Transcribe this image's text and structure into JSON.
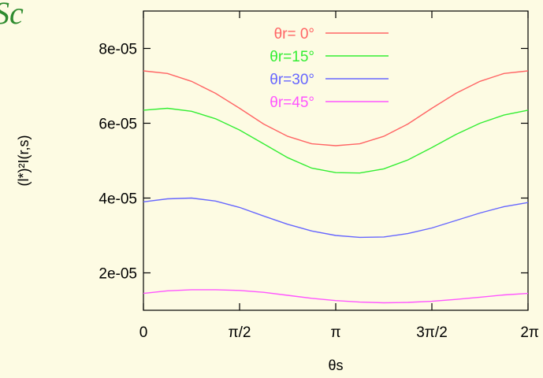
{
  "corner_text": "Sc",
  "chart_data": {
    "type": "line",
    "xlabel": "θs",
    "ylabel": "(l*)²I(r,s)",
    "xlim": [
      0,
      6.283185
    ],
    "ylim": [
      1e-05,
      9e-05
    ],
    "x_ticks": [
      {
        "value": 0,
        "label": "0"
      },
      {
        "value": 1.570796,
        "label": "π/2"
      },
      {
        "value": 3.141593,
        "label": "π"
      },
      {
        "value": 4.712389,
        "label": "3π/2"
      },
      {
        "value": 6.283185,
        "label": "2π"
      }
    ],
    "y_ticks": [
      {
        "value": 2e-05,
        "label": "2e-05"
      },
      {
        "value": 4e-05,
        "label": "4e-05"
      },
      {
        "value": 6e-05,
        "label": "6e-05"
      },
      {
        "value": 8e-05,
        "label": "8e-05"
      }
    ],
    "grid": false,
    "legend_position": "top-right",
    "x": [
      0,
      0.3927,
      0.7854,
      1.1781,
      1.5708,
      1.9635,
      2.3562,
      2.7489,
      3.1416,
      3.5343,
      3.927,
      4.3197,
      4.7124,
      5.1051,
      5.4978,
      5.8905,
      6.2832
    ],
    "series": [
      {
        "name": "θr= 0°",
        "color": "#ff6464",
        "values": [
          7.4e-05,
          7.33e-05,
          7.12e-05,
          6.8e-05,
          6.4e-05,
          5.98e-05,
          5.65e-05,
          5.45e-05,
          5.4e-05,
          5.45e-05,
          5.65e-05,
          5.98e-05,
          6.4e-05,
          6.8e-05,
          7.12e-05,
          7.33e-05,
          7.4e-05
        ]
      },
      {
        "name": "θr=15°",
        "color": "#33ee33",
        "values": [
          6.35e-05,
          6.4e-05,
          6.32e-05,
          6.12e-05,
          5.82e-05,
          5.45e-05,
          5.08e-05,
          4.8e-05,
          4.68e-05,
          4.67e-05,
          4.78e-05,
          5.02e-05,
          5.35e-05,
          5.7e-05,
          6e-05,
          6.22e-05,
          6.35e-05
        ]
      },
      {
        "name": "θr=30°",
        "color": "#6666ff",
        "values": [
          3.9e-05,
          3.98e-05,
          4e-05,
          3.92e-05,
          3.75e-05,
          3.52e-05,
          3.3e-05,
          3.12e-05,
          3e-05,
          2.95e-05,
          2.96e-05,
          3.05e-05,
          3.2e-05,
          3.4e-05,
          3.6e-05,
          3.77e-05,
          3.88e-05
        ]
      },
      {
        "name": "θr=45°",
        "color": "#ff55ff",
        "values": [
          1.45e-05,
          1.52e-05,
          1.55e-05,
          1.55e-05,
          1.53e-05,
          1.48e-05,
          1.4e-05,
          1.32e-05,
          1.26e-05,
          1.22e-05,
          1.2e-05,
          1.21e-05,
          1.24e-05,
          1.29e-05,
          1.35e-05,
          1.41e-05,
          1.45e-05
        ]
      }
    ]
  }
}
